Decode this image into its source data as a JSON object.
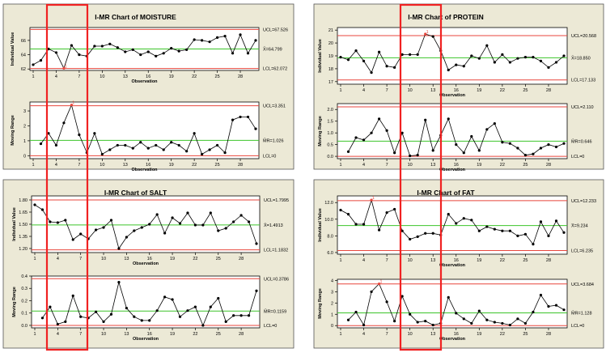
{
  "colors": {
    "panel": "#ece9d6",
    "plot": "#ffffff",
    "limit": "#e8463c",
    "center": "#3cc42a",
    "series": "#000000",
    "point": "#000000",
    "flag": "#e8463c",
    "highlight": "#f02222"
  },
  "chart_data": [
    {
      "type": "line",
      "title": "I-MR Chart of MOISTURE",
      "individual": {
        "ylabel": "Individual Value",
        "xlabel": "Observation",
        "ylim": [
          61.8,
          67.8
        ],
        "yticks": [
          "62",
          "64",
          "66"
        ],
        "ytick_values": [
          62,
          64,
          66
        ],
        "xticks": [
          "1",
          "4",
          "7",
          "10",
          "13",
          "16",
          "19",
          "22",
          "25",
          "28"
        ],
        "ucl": 67.526,
        "center": 64.799,
        "lcl": 62.072,
        "ucl_label": "UCL=67.526",
        "center_label": "X̄=64.799",
        "lcl_label": "LCL=62.072",
        "values": [
          62.6,
          63.2,
          64.8,
          64.3,
          62.1,
          65.3,
          64.0,
          63.8,
          65.2,
          65.2,
          65.5,
          65.0,
          64.4,
          64.7,
          64.0,
          64.4,
          63.8,
          64.2,
          64.9,
          64.5,
          64.7,
          66.1,
          66.0,
          65.8,
          66.4,
          66.6,
          64.2,
          66.8,
          64.2,
          66.0
        ],
        "flagged": [
          5
        ]
      },
      "moving_range": {
        "ylabel": "Moving Range",
        "xlabel": "Observation",
        "ylim": [
          -0.2,
          3.6
        ],
        "yticks": [
          "0",
          "1",
          "2",
          "3"
        ],
        "ytick_values": [
          0,
          1,
          2,
          3
        ],
        "xticks": [
          "1",
          "4",
          "7",
          "10",
          "13",
          "16",
          "19",
          "22",
          "25",
          "28"
        ],
        "ucl": 3.351,
        "center": 1.026,
        "lcl": 0,
        "ucl_label": "UCL=3.351",
        "center_label": "M̄R=1.026",
        "lcl_label": "LCL=0",
        "values": [
          null,
          0.8,
          1.5,
          0.7,
          2.2,
          3.4,
          1.4,
          0.2,
          1.5,
          0.1,
          0.4,
          0.7,
          0.7,
          0.5,
          0.9,
          0.5,
          0.7,
          0.4,
          0.9,
          0.7,
          0.3,
          1.5,
          0.1,
          0.4,
          0.7,
          0.2,
          2.4,
          2.6,
          2.6,
          1.8
        ],
        "flagged": [
          6
        ]
      }
    },
    {
      "type": "line",
      "title": "I-MR Chart of PROTEIN",
      "individual": {
        "ylabel": "Individual Value",
        "xlabel": "Observation",
        "ylim": [
          16.8,
          21.2
        ],
        "yticks": [
          "17",
          "18",
          "19",
          "20",
          "21"
        ],
        "ytick_values": [
          17,
          18,
          19,
          20,
          21
        ],
        "xticks": [
          "1",
          "4",
          "7",
          "10",
          "13",
          "16",
          "19",
          "22",
          "25",
          "28"
        ],
        "ucl": 20.568,
        "center": 18.85,
        "lcl": 17.133,
        "ucl_label": "UCL=20.568",
        "center_label": "X̄=18.850",
        "lcl_label": "LCL=17.133",
        "values": [
          18.9,
          18.7,
          19.4,
          18.6,
          17.7,
          19.3,
          18.2,
          18.1,
          19.1,
          19.1,
          19.1,
          20.7,
          20.5,
          19.4,
          17.9,
          18.3,
          18.2,
          19.0,
          18.8,
          19.8,
          18.5,
          19.1,
          18.5,
          18.8,
          18.9,
          18.9,
          18.6,
          18.1,
          18.5,
          19.0
        ],
        "flagged": [
          12
        ]
      },
      "moving_range": {
        "ylabel": "Moving Range",
        "xlabel": "Observation",
        "ylim": [
          -0.1,
          2.25
        ],
        "yticks": [
          "0.0",
          "0.5",
          "1.0",
          "1.5",
          "2.0"
        ],
        "ytick_values": [
          0,
          0.5,
          1,
          1.5,
          2
        ],
        "xticks": [
          "1",
          "4",
          "7",
          "10",
          "13",
          "16",
          "19",
          "22",
          "25",
          "28"
        ],
        "ucl": 2.11,
        "center": 0.646,
        "lcl": 0,
        "ucl_label": "UCL=2.110",
        "center_label": "M̄R=0.646",
        "lcl_label": "LCL=0",
        "values": [
          null,
          0.2,
          0.8,
          0.7,
          1.0,
          1.6,
          1.1,
          0.15,
          1.0,
          0.02,
          0.05,
          1.55,
          0.25,
          0.9,
          1.6,
          0.5,
          0.15,
          0.85,
          0.25,
          1.15,
          1.4,
          0.6,
          0.55,
          0.35,
          0.05,
          0.1,
          0.35,
          0.5,
          0.4,
          0.55
        ],
        "flagged": []
      }
    },
    {
      "type": "line",
      "title": "I-MR Chart of SALT",
      "individual": {
        "ylabel": "Individual Value",
        "xlabel": "Observation",
        "ylim": [
          1.15,
          1.85
        ],
        "yticks": [
          "1.20",
          "1.35",
          "1.50",
          "1.65",
          "1.80"
        ],
        "ytick_values": [
          1.2,
          1.35,
          1.5,
          1.65,
          1.8
        ],
        "xticks": [
          "1",
          "4",
          "7",
          "10",
          "13",
          "16",
          "19",
          "22",
          "25",
          "28"
        ],
        "ucl": 1.7995,
        "center": 1.4913,
        "lcl": 1.1832,
        "ucl_label": "UCL=1.7995",
        "center_label": "X̄=1.4913",
        "lcl_label": "LCL=1.1832",
        "values": [
          1.74,
          1.68,
          1.53,
          1.52,
          1.55,
          1.31,
          1.38,
          1.32,
          1.43,
          1.46,
          1.55,
          1.2,
          1.34,
          1.42,
          1.46,
          1.5,
          1.62,
          1.39,
          1.58,
          1.51,
          1.64,
          1.49,
          1.49,
          1.64,
          1.42,
          1.45,
          1.53,
          1.61,
          1.53,
          1.26
        ],
        "flagged": []
      },
      "moving_range": {
        "ylabel": "Moving Range",
        "xlabel": "Observation",
        "ylim": [
          -0.02,
          0.4
        ],
        "yticks": [
          "0.0",
          "0.1",
          "0.2",
          "0.3",
          "0.4"
        ],
        "ytick_values": [
          0,
          0.1,
          0.2,
          0.3,
          0.4
        ],
        "xticks": [
          "1",
          "4",
          "7",
          "10",
          "13",
          "16",
          "19",
          "22",
          "25",
          "28"
        ],
        "ucl": 0.3786,
        "center": 0.1159,
        "lcl": 0,
        "ucl_label": "UCL=0.3786",
        "center_label": "M̄R=0.1159",
        "lcl_label": "LCL=0",
        "values": [
          null,
          0.06,
          0.15,
          0.01,
          0.03,
          0.24,
          0.07,
          0.06,
          0.11,
          0.03,
          0.09,
          0.35,
          0.14,
          0.07,
          0.04,
          0.04,
          0.12,
          0.23,
          0.21,
          0.07,
          0.12,
          0.15,
          0.0,
          0.15,
          0.22,
          0.03,
          0.08,
          0.08,
          0.08,
          0.28
        ],
        "flagged": []
      }
    },
    {
      "type": "line",
      "title": "I-MR Chart of FAT",
      "individual": {
        "ylabel": "Individual Value",
        "xlabel": "Observation",
        "ylim": [
          5.8,
          12.8
        ],
        "yticks": [
          "6.0",
          "8.0",
          "10.0",
          "12.0"
        ],
        "ytick_values": [
          6,
          8,
          10,
          12
        ],
        "xticks": [
          "1",
          "4",
          "7",
          "10",
          "13",
          "16",
          "19",
          "22",
          "25",
          "28"
        ],
        "ucl": 12.233,
        "center": 9.234,
        "lcl": 6.235,
        "ucl_label": "UCL=12.233",
        "center_label": "X̄=9.234",
        "lcl_label": "LCL=6.235",
        "values": [
          11.1,
          10.6,
          9.4,
          9.4,
          12.3,
          8.7,
          10.8,
          11.2,
          8.6,
          7.6,
          7.9,
          8.3,
          8.3,
          8.1,
          10.6,
          9.5,
          10.1,
          9.9,
          8.6,
          9.1,
          8.8,
          8.6,
          8.6,
          8.0,
          8.2,
          7.0,
          9.7,
          8.0,
          9.8,
          8.4
        ],
        "flagged": [
          5
        ]
      },
      "moving_range": {
        "ylabel": "Moving Range",
        "xlabel": "Observation",
        "ylim": [
          -0.2,
          4.1
        ],
        "yticks": [
          "0",
          "1",
          "2",
          "3",
          "4"
        ],
        "ytick_values": [
          0,
          1,
          2,
          3,
          4
        ],
        "xticks": [
          "1",
          "4",
          "7",
          "10",
          "13",
          "16",
          "19",
          "22",
          "25",
          "28"
        ],
        "ucl": 3.684,
        "center": 1.128,
        "lcl": 0,
        "ucl_label": "UCL=3.684",
        "center_label": "M̄R=1.128",
        "lcl_label": "LCL=0",
        "values": [
          null,
          0.5,
          1.2,
          0.05,
          3.0,
          3.7,
          2.1,
          0.4,
          2.6,
          1.0,
          0.3,
          0.4,
          0.05,
          0.2,
          2.5,
          1.1,
          0.6,
          0.2,
          1.3,
          0.5,
          0.3,
          0.2,
          0.05,
          0.6,
          0.2,
          1.2,
          2.7,
          1.7,
          1.8,
          1.4
        ],
        "flagged": [
          6
        ]
      }
    }
  ]
}
